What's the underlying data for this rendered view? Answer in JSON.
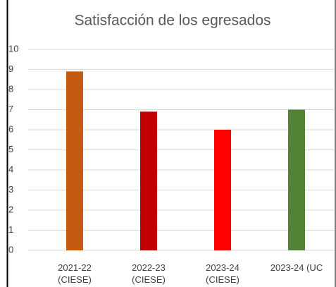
{
  "chart_data": {
    "type": "bar",
    "title": "Satisfacción de los egresados",
    "categories": [
      "2021-22\n(CIESE)",
      "2022-23\n(CIESE)",
      "2023-24\n(CIESE)",
      "2023-24 (UC"
    ],
    "values": [
      8.9,
      6.9,
      6.0,
      7.0
    ],
    "colors": [
      "#c55a11",
      "#c00000",
      "#ff0000",
      "#548235"
    ],
    "ylim": [
      0,
      10
    ],
    "yticks": [
      0,
      1,
      2,
      3,
      4,
      5,
      6,
      7,
      8,
      9,
      10
    ],
    "grid": true
  }
}
